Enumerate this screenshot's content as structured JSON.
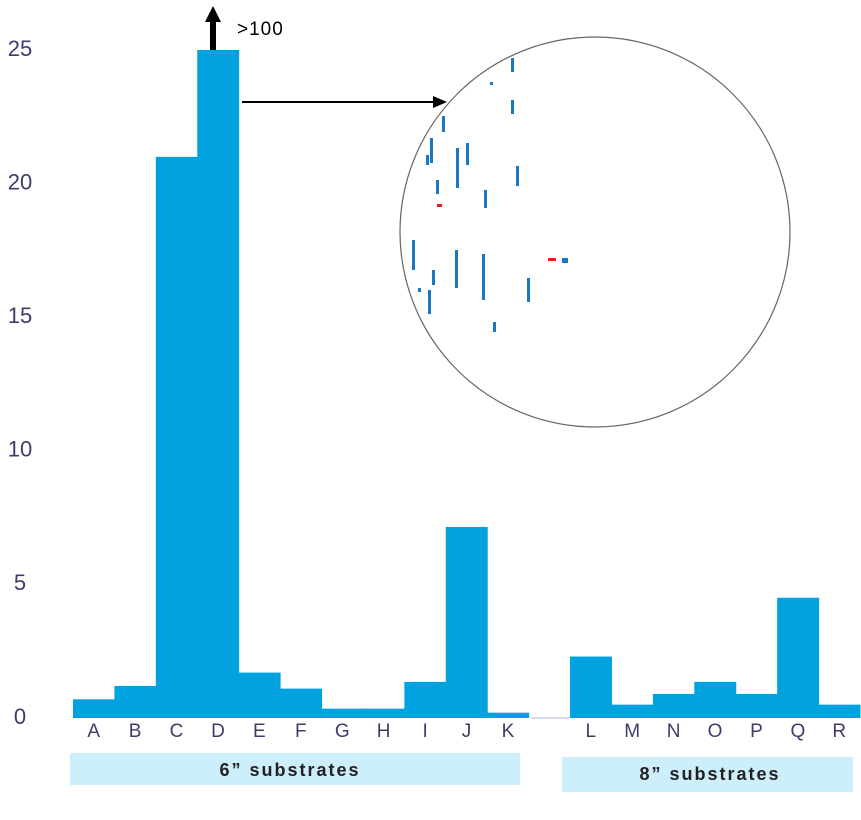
{
  "chart_data": {
    "type": "bar",
    "categories": [
      "A",
      "B",
      "C",
      "D",
      "E",
      "F",
      "G",
      "H",
      "I",
      "J",
      "K",
      null,
      "L",
      "M",
      "N",
      "O",
      "P",
      "Q",
      "R"
    ],
    "values": [
      0.7,
      1.2,
      21.0,
      25,
      1.7,
      1.1,
      0.35,
      0.35,
      1.35,
      7.15,
      0.2,
      null,
      2.3,
      0.5,
      0.9,
      1.35,
      0.9,
      4.5,
      0.5
    ],
    "color": "#00a2df",
    "ylim": [
      0,
      25
    ],
    "yticks": [
      0,
      5,
      10,
      15,
      20,
      25
    ],
    "grid": false,
    "annotation": ">100",
    "group_labels": [
      "6” substrates",
      "8” substrates"
    ]
  }
}
